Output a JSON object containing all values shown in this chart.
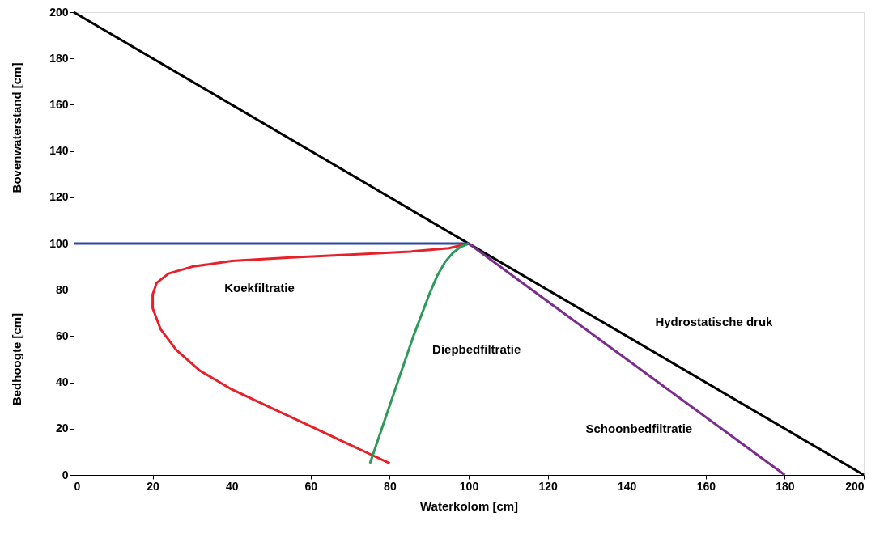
{
  "chart_data": {
    "type": "line",
    "xlabel": "Waterkolom [cm]",
    "ylabel": [
      "Bovenwaterstand [cm]",
      "Bedhoogte [cm]"
    ],
    "xlim": [
      0,
      200
    ],
    "ylim": [
      0,
      200
    ],
    "xticks": [
      0,
      20,
      40,
      60,
      80,
      100,
      120,
      140,
      160,
      180,
      200
    ],
    "yticks": [
      0,
      20,
      40,
      60,
      80,
      100,
      120,
      140,
      160,
      180,
      200
    ],
    "grid": false,
    "legend": false,
    "marker": "none",
    "line_style": "solid",
    "series": [
      {
        "name": "Hydrostatische druk",
        "color": "#000000",
        "x": [
          0,
          200
        ],
        "values": [
          200,
          0
        ]
      },
      {
        "color": "#2b4aa0",
        "x": [
          0,
          100
        ],
        "values": [
          100,
          100
        ]
      },
      {
        "name": "Koekfiltratie",
        "color": "#e8202a",
        "x": [
          80,
          75,
          70,
          65,
          60,
          50,
          40,
          32,
          26,
          22,
          20,
          20,
          21,
          24,
          30,
          40,
          55,
          70,
          85,
          95,
          100
        ],
        "values": [
          5,
          9,
          13,
          17,
          21,
          29,
          37,
          45,
          54,
          63,
          72,
          78,
          83,
          87,
          90,
          92.5,
          94,
          95.2,
          96.5,
          98,
          100
        ]
      },
      {
        "name": "Diepbedfiltratie",
        "color": "#2e9a5a",
        "x": [
          75,
          78,
          82,
          86,
          90,
          92,
          94,
          96,
          98,
          100
        ],
        "values": [
          5,
          20,
          40,
          60,
          78,
          86,
          92,
          96,
          98.6,
          100
        ]
      },
      {
        "name": "Schoonbedfiltratie",
        "color": "#7b2d8e",
        "x": [
          100,
          180
        ],
        "values": [
          100,
          0
        ]
      }
    ]
  }
}
